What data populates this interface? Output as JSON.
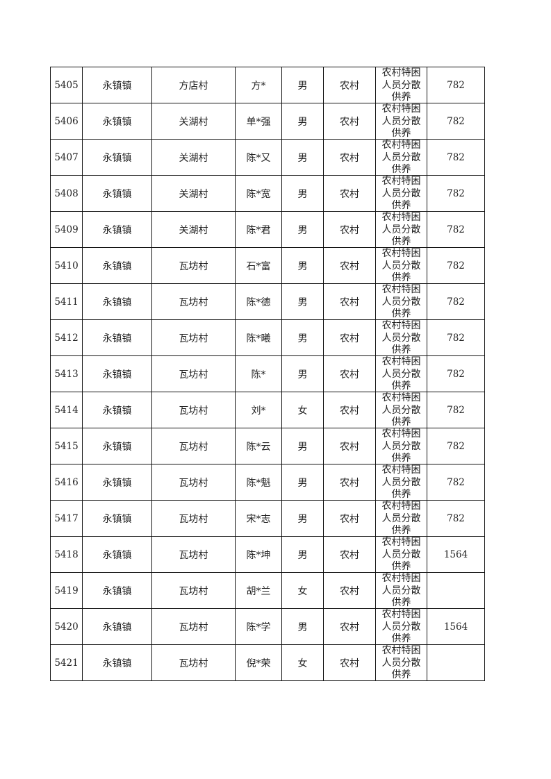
{
  "table": {
    "rows": [
      {
        "id": "5405",
        "town": "永镇镇",
        "village": "方店村",
        "name": "方*",
        "gender": "男",
        "area": "农村",
        "type": "农村特困人员分散供养",
        "amount": "782"
      },
      {
        "id": "5406",
        "town": "永镇镇",
        "village": "关湖村",
        "name": "单*强",
        "gender": "男",
        "area": "农村",
        "type": "农村特困人员分散供养",
        "amount": "782"
      },
      {
        "id": "5407",
        "town": "永镇镇",
        "village": "关湖村",
        "name": "陈*又",
        "gender": "男",
        "area": "农村",
        "type": "农村特困人员分散供养",
        "amount": "782"
      },
      {
        "id": "5408",
        "town": "永镇镇",
        "village": "关湖村",
        "name": "陈*宽",
        "gender": "男",
        "area": "农村",
        "type": "农村特困人员分散供养",
        "amount": "782"
      },
      {
        "id": "5409",
        "town": "永镇镇",
        "village": "关湖村",
        "name": "陈*君",
        "gender": "男",
        "area": "农村",
        "type": "农村特困人员分散供养",
        "amount": "782"
      },
      {
        "id": "5410",
        "town": "永镇镇",
        "village": "瓦坊村",
        "name": "石*富",
        "gender": "男",
        "area": "农村",
        "type": "农村特困人员分散供养",
        "amount": "782"
      },
      {
        "id": "5411",
        "town": "永镇镇",
        "village": "瓦坊村",
        "name": "陈*德",
        "gender": "男",
        "area": "农村",
        "type": "农村特困人员分散供养",
        "amount": "782"
      },
      {
        "id": "5412",
        "town": "永镇镇",
        "village": "瓦坊村",
        "name": "陈*曦",
        "gender": "男",
        "area": "农村",
        "type": "农村特困人员分散供养",
        "amount": "782"
      },
      {
        "id": "5413",
        "town": "永镇镇",
        "village": "瓦坊村",
        "name": "陈*",
        "gender": "男",
        "area": "农村",
        "type": "农村特困人员分散供养",
        "amount": "782"
      },
      {
        "id": "5414",
        "town": "永镇镇",
        "village": "瓦坊村",
        "name": "刘*",
        "gender": "女",
        "area": "农村",
        "type": "农村特困人员分散供养",
        "amount": "782"
      },
      {
        "id": "5415",
        "town": "永镇镇",
        "village": "瓦坊村",
        "name": "陈*云",
        "gender": "男",
        "area": "农村",
        "type": "农村特困人员分散供养",
        "amount": "782"
      },
      {
        "id": "5416",
        "town": "永镇镇",
        "village": "瓦坊村",
        "name": "陈*魁",
        "gender": "男",
        "area": "农村",
        "type": "农村特困人员分散供养",
        "amount": "782"
      },
      {
        "id": "5417",
        "town": "永镇镇",
        "village": "瓦坊村",
        "name": "宋*志",
        "gender": "男",
        "area": "农村",
        "type": "农村特困人员分散供养",
        "amount": "782"
      },
      {
        "id": "5418",
        "town": "永镇镇",
        "village": "瓦坊村",
        "name": "陈*坤",
        "gender": "男",
        "area": "农村",
        "type": "农村特困人员分散供养",
        "amount": "1564"
      },
      {
        "id": "5419",
        "town": "永镇镇",
        "village": "瓦坊村",
        "name": "胡*兰",
        "gender": "女",
        "area": "农村",
        "type": "农村特困人员分散供养",
        "amount": ""
      },
      {
        "id": "5420",
        "town": "永镇镇",
        "village": "瓦坊村",
        "name": "陈*学",
        "gender": "男",
        "area": "农村",
        "type": "农村特困人员分散供养",
        "amount": "1564"
      },
      {
        "id": "5421",
        "town": "永镇镇",
        "village": "瓦坊村",
        "name": "倪*荣",
        "gender": "女",
        "area": "农村",
        "type": "农村特困人员分散供养",
        "amount": ""
      }
    ]
  }
}
